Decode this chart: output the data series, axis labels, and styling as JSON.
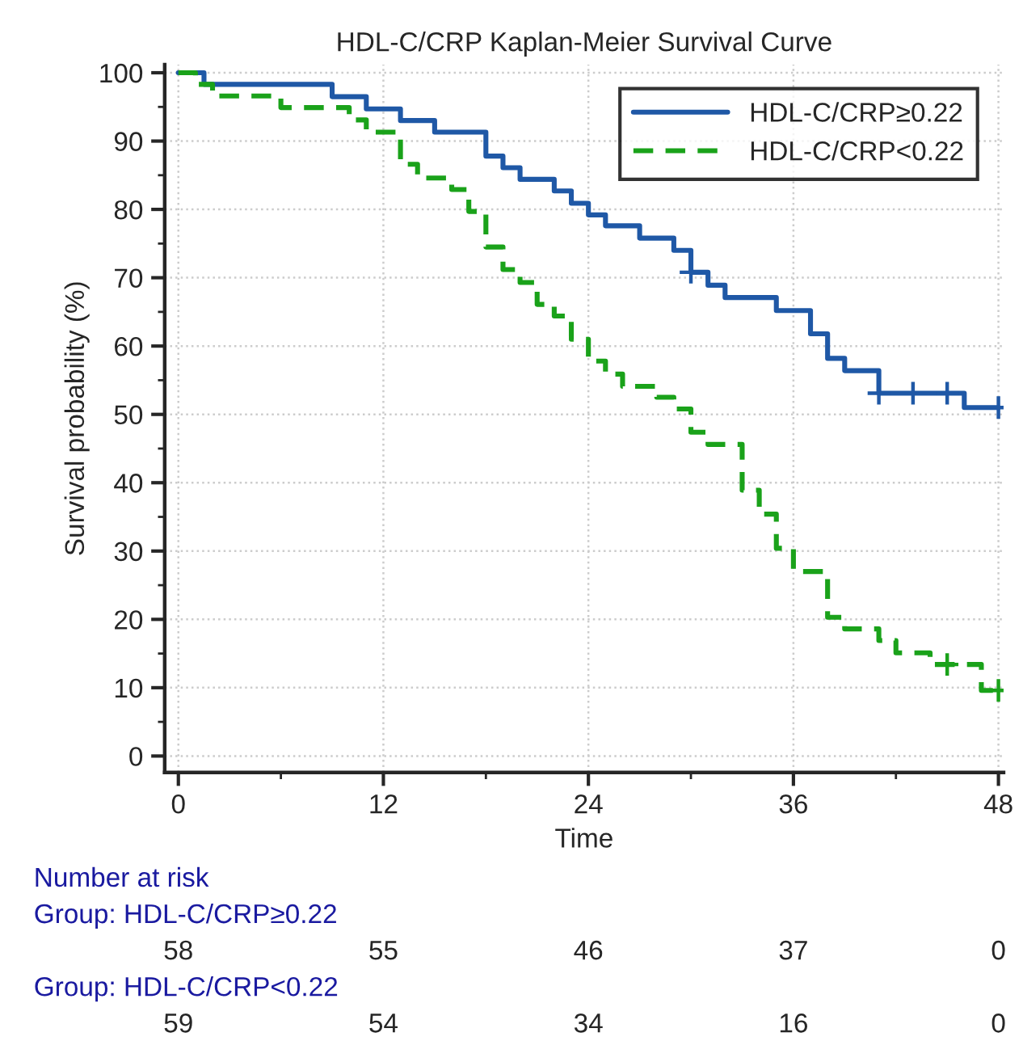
{
  "chart_data": {
    "type": "step",
    "title": "HDL-C/CRP Kaplan-Meier Survival Curve",
    "xlabel": "Time",
    "ylabel": "Survival probability (%)",
    "series": [
      {
        "name": "HDL-C/CRP≥0.22",
        "color": "#1f58a6",
        "line_style": "solid",
        "x": [
          0,
          1.5,
          9,
          11,
          13,
          15,
          18,
          19,
          20,
          22,
          23,
          24,
          25,
          27,
          29,
          30,
          31,
          32,
          35,
          37,
          38,
          39,
          41,
          46,
          48
        ],
        "values": [
          100,
          98.3,
          96.5,
          94.7,
          93.0,
          91.3,
          87.8,
          86.1,
          84.4,
          82.7,
          80.9,
          79.2,
          77.6,
          75.8,
          74.0,
          70.8,
          68.9,
          67.1,
          65.2,
          61.8,
          58.2,
          56.4,
          53.1,
          51.0,
          51.0
        ]
      },
      {
        "name": "HDL-C/CRP<0.22",
        "color": "#1aa21a",
        "line_style": "dashed",
        "x": [
          0,
          1,
          2,
          6,
          10,
          11,
          13,
          14,
          16,
          17,
          18,
          19,
          20,
          21,
          22,
          23,
          24,
          25,
          26,
          28,
          29,
          30,
          31,
          33,
          34,
          35,
          36,
          38,
          39,
          41,
          42,
          44,
          47,
          48
        ],
        "values": [
          100,
          98.3,
          96.6,
          94.9,
          93.1,
          91.3,
          86.6,
          84.6,
          82.9,
          79.7,
          74.5,
          71.2,
          69.3,
          66.1,
          64.4,
          61.0,
          57.8,
          55.9,
          54.1,
          52.5,
          50.8,
          47.4,
          45.6,
          38.9,
          35.4,
          30.4,
          27.0,
          20.3,
          18.6,
          16.9,
          15.1,
          13.4,
          9.6,
          9.6
        ]
      },
      {
        "type": "scatter",
        "marker": "cross",
        "color": "#1f58a6",
        "x": [
          30,
          41,
          43,
          45,
          48
        ],
        "values": [
          70.8,
          53.1,
          53.1,
          53.1,
          51.0
        ]
      },
      {
        "type": "scatter",
        "marker": "cross",
        "color": "#1aa21a",
        "x": [
          45,
          48
        ],
        "values": [
          13.4,
          9.6
        ]
      }
    ],
    "xlim": [
      -0.8,
      48.3
    ],
    "xticks": [
      0,
      12,
      24,
      36,
      48
    ],
    "ylim": [
      -2.4,
      101.2
    ],
    "yticks": [
      0,
      10,
      20,
      30,
      40,
      50,
      60,
      70,
      80,
      90,
      100
    ],
    "grid": true,
    "legend": "top right",
    "annotations": [
      "Number at risk",
      "Group: HDL-C/CRP≥0.22",
      "58",
      "55",
      "46",
      "37",
      "0",
      "Group: HDL-C/CRP<0.22",
      "59",
      "54",
      "34",
      "16",
      "0"
    ]
  }
}
